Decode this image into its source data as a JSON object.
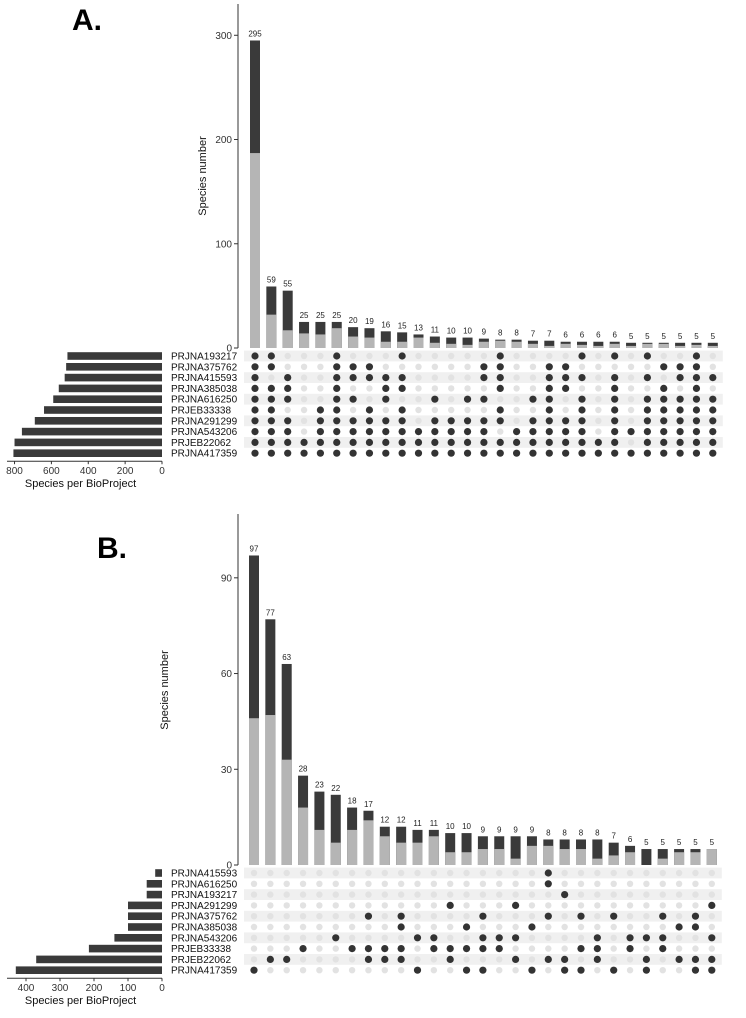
{
  "chart_data": [
    {
      "panel": "A.",
      "type": "bar",
      "ylabel": "Species number",
      "ylim": [
        0,
        330
      ],
      "yticks": [
        0,
        100,
        200,
        300
      ],
      "bar_values": [
        295,
        59,
        55,
        25,
        25,
        25,
        20,
        19,
        16,
        15,
        13,
        11,
        10,
        10,
        9,
        8,
        8,
        7,
        7,
        6,
        6,
        6,
        6,
        5,
        5,
        5,
        5,
        5,
        5
      ],
      "light_values": [
        187,
        32,
        17,
        14,
        13,
        19,
        11,
        10,
        6,
        6,
        10,
        5,
        4,
        3,
        6,
        7,
        6,
        4,
        2,
        4,
        3,
        2,
        4,
        2,
        4,
        4,
        2,
        3,
        2
      ],
      "colors": {
        "total": "#3a3a3a",
        "light": "#b5b5b5",
        "dot_on": "#333333",
        "dot_off": "#e2e2e2",
        "stripe": "#f0f0f0"
      },
      "sets": [
        "PRJNA193217",
        "PRJNA375762",
        "PRJNA415593",
        "PRJNA385038",
        "PRJNA616250",
        "PRJEB33338",
        "PRJNA291299",
        "PRJNA543206",
        "PRJEB22062",
        "PRJNA417359"
      ],
      "set_sizes": [
        513,
        520,
        528,
        560,
        590,
        640,
        690,
        760,
        800,
        806
      ],
      "set_xlabel": "Species per BioProject",
      "set_xticks": [
        800,
        600,
        400,
        200,
        0
      ],
      "set_xlim": [
        0,
        830
      ],
      "matrix": [
        [
          1,
          1,
          1,
          1,
          1,
          1,
          1,
          1,
          1,
          1
        ],
        [
          1,
          1,
          0,
          1,
          1,
          1,
          1,
          1,
          1,
          1
        ],
        [
          0,
          0,
          1,
          1,
          1,
          0,
          1,
          1,
          1,
          1
        ],
        [
          0,
          0,
          0,
          0,
          0,
          0,
          0,
          0,
          1,
          1
        ],
        [
          0,
          0,
          0,
          0,
          0,
          1,
          1,
          1,
          1,
          1
        ],
        [
          1,
          1,
          1,
          1,
          1,
          1,
          1,
          1,
          1,
          1
        ],
        [
          0,
          1,
          1,
          0,
          1,
          0,
          1,
          1,
          1,
          1
        ],
        [
          0,
          1,
          1,
          0,
          0,
          1,
          1,
          1,
          1,
          1
        ],
        [
          0,
          0,
          1,
          1,
          1,
          0,
          1,
          1,
          1,
          1
        ],
        [
          1,
          0,
          1,
          1,
          0,
          1,
          1,
          1,
          1,
          1
        ],
        [
          0,
          0,
          0,
          0,
          0,
          0,
          0,
          1,
          1,
          1
        ],
        [
          0,
          0,
          0,
          0,
          1,
          0,
          1,
          1,
          1,
          1
        ],
        [
          0,
          0,
          0,
          0,
          0,
          0,
          1,
          1,
          1,
          1
        ],
        [
          0,
          0,
          0,
          0,
          1,
          0,
          1,
          1,
          1,
          1
        ],
        [
          0,
          1,
          1,
          0,
          1,
          0,
          1,
          1,
          1,
          1
        ],
        [
          1,
          1,
          1,
          1,
          0,
          1,
          1,
          0,
          1,
          1
        ],
        [
          0,
          0,
          0,
          0,
          0,
          0,
          0,
          1,
          1,
          1
        ],
        [
          0,
          0,
          0,
          0,
          1,
          0,
          1,
          1,
          1,
          1
        ],
        [
          0,
          1,
          1,
          1,
          1,
          1,
          1,
          1,
          1,
          1
        ],
        [
          0,
          1,
          1,
          1,
          0,
          0,
          1,
          1,
          1,
          1
        ],
        [
          1,
          0,
          1,
          0,
          1,
          1,
          1,
          1,
          1,
          1
        ],
        [
          0,
          0,
          0,
          0,
          0,
          0,
          0,
          0,
          1,
          1
        ],
        [
          1,
          0,
          1,
          1,
          1,
          1,
          1,
          1,
          1,
          1
        ],
        [
          0,
          0,
          0,
          0,
          0,
          0,
          0,
          1,
          0,
          1
        ],
        [
          1,
          0,
          1,
          0,
          1,
          1,
          1,
          1,
          1,
          1
        ],
        [
          0,
          1,
          0,
          1,
          1,
          1,
          1,
          1,
          1,
          1
        ],
        [
          0,
          1,
          1,
          0,
          1,
          1,
          1,
          1,
          1,
          1
        ],
        [
          1,
          1,
          1,
          1,
          1,
          1,
          1,
          1,
          1,
          1
        ],
        [
          0,
          0,
          1,
          0,
          1,
          1,
          1,
          1,
          1,
          1
        ]
      ]
    },
    {
      "panel": "B.",
      "type": "bar",
      "ylabel": "Species number",
      "ylim": [
        0,
        110
      ],
      "yticks": [
        0,
        30,
        60,
        90
      ],
      "bar_values": [
        97,
        77,
        63,
        28,
        23,
        22,
        18,
        17,
        12,
        12,
        11,
        11,
        10,
        10,
        9,
        9,
        9,
        9,
        8,
        8,
        8,
        8,
        7,
        6,
        5,
        5,
        5,
        5,
        5
      ],
      "light_values": [
        46,
        47,
        33,
        18,
        11,
        7,
        11,
        14,
        9,
        7,
        7,
        9,
        4,
        4,
        5,
        5,
        2,
        6,
        6,
        5,
        5,
        2,
        3,
        4,
        0,
        2,
        4,
        4,
        5
      ],
      "colors": {
        "total": "#3a3a3a",
        "light": "#b5b5b5",
        "dot_on": "#333333",
        "dot_off": "#e2e2e2",
        "stripe": "#f0f0f0"
      },
      "sets": [
        "PRJNA415593",
        "PRJNA616250",
        "PRJNA193217",
        "PRJNA291299",
        "PRJNA375762",
        "PRJNA385038",
        "PRJNA543206",
        "PRJEB33338",
        "PRJEB22062",
        "PRJNA417359"
      ],
      "set_sizes": [
        20,
        45,
        45,
        100,
        100,
        100,
        140,
        215,
        370,
        430
      ],
      "set_xlabel": "Species per BioProject",
      "set_xticks": [
        400,
        300,
        200,
        100,
        0
      ],
      "set_xlim": [
        0,
        450
      ],
      "matrix": [
        [
          0,
          0,
          0,
          0,
          0,
          0,
          0,
          0,
          0,
          1
        ],
        [
          0,
          0,
          0,
          0,
          0,
          0,
          0,
          0,
          1,
          0
        ],
        [
          0,
          0,
          0,
          0,
          0,
          0,
          0,
          0,
          1,
          0
        ],
        [
          0,
          0,
          0,
          0,
          0,
          0,
          0,
          1,
          0,
          0
        ],
        [
          0,
          0,
          0,
          0,
          0,
          0,
          0,
          0,
          0,
          0
        ],
        [
          0,
          0,
          0,
          0,
          0,
          0,
          1,
          0,
          0,
          0
        ],
        [
          0,
          0,
          0,
          0,
          0,
          0,
          0,
          1,
          0,
          0
        ],
        [
          0,
          0,
          0,
          0,
          1,
          0,
          0,
          1,
          1,
          0
        ],
        [
          0,
          0,
          0,
          0,
          0,
          0,
          0,
          1,
          1,
          0
        ],
        [
          0,
          0,
          0,
          0,
          1,
          1,
          0,
          1,
          1,
          0
        ],
        [
          0,
          0,
          0,
          0,
          0,
          0,
          1,
          0,
          0,
          1
        ],
        [
          0,
          0,
          0,
          0,
          0,
          0,
          1,
          1,
          0,
          0
        ],
        [
          0,
          0,
          0,
          1,
          0,
          0,
          0,
          1,
          1,
          0
        ],
        [
          0,
          0,
          0,
          0,
          0,
          1,
          0,
          1,
          0,
          1
        ],
        [
          0,
          0,
          0,
          0,
          1,
          0,
          1,
          1,
          0,
          1
        ],
        [
          0,
          0,
          0,
          0,
          0,
          0,
          1,
          1,
          0,
          0
        ],
        [
          0,
          0,
          0,
          1,
          0,
          0,
          1,
          0,
          1,
          0
        ],
        [
          0,
          0,
          0,
          0,
          0,
          1,
          0,
          0,
          0,
          1
        ],
        [
          1,
          1,
          0,
          0,
          1,
          0,
          0,
          0,
          1,
          0
        ],
        [
          0,
          0,
          1,
          0,
          0,
          0,
          0,
          0,
          1,
          1
        ],
        [
          0,
          0,
          0,
          0,
          1,
          0,
          0,
          1,
          0,
          1
        ],
        [
          0,
          0,
          0,
          0,
          0,
          0,
          1,
          1,
          1,
          0
        ],
        [
          0,
          0,
          0,
          0,
          1,
          0,
          0,
          0,
          0,
          1
        ],
        [
          0,
          0,
          0,
          0,
          0,
          0,
          1,
          1,
          0,
          0
        ],
        [
          0,
          0,
          0,
          0,
          0,
          0,
          1,
          0,
          1,
          1
        ],
        [
          0,
          0,
          0,
          0,
          1,
          0,
          1,
          1,
          0,
          0
        ],
        [
          0,
          0,
          0,
          0,
          0,
          1,
          0,
          0,
          1,
          0
        ],
        [
          0,
          0,
          0,
          0,
          1,
          1,
          0,
          0,
          1,
          1
        ],
        [
          0,
          0,
          0,
          1,
          0,
          0,
          1,
          0,
          1,
          1
        ]
      ]
    }
  ]
}
